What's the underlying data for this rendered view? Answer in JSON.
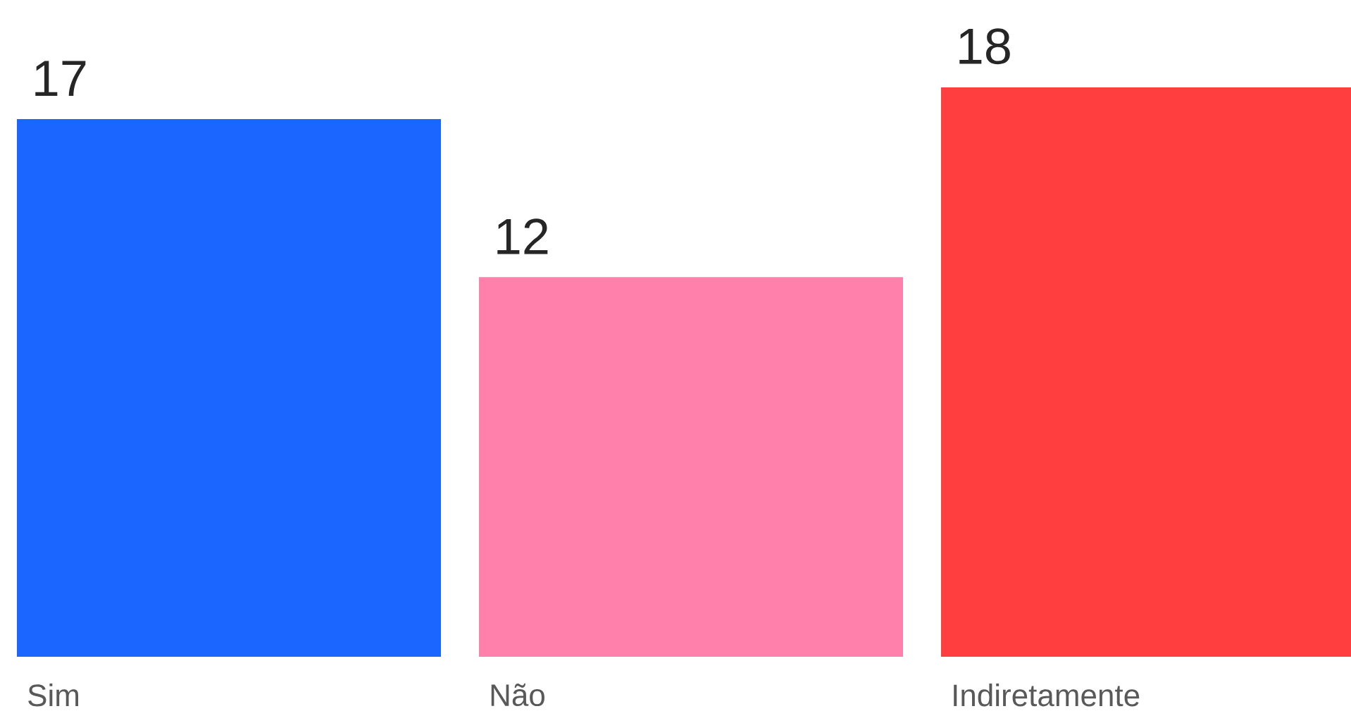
{
  "chart_data": {
    "type": "bar",
    "categories": [
      "Sim",
      "Não",
      "Indiretamente"
    ],
    "values": [
      17,
      12,
      18
    ],
    "colors": [
      "#1a66ff",
      "#ff80ab",
      "#ff3f3f"
    ],
    "data_labels": true
  }
}
